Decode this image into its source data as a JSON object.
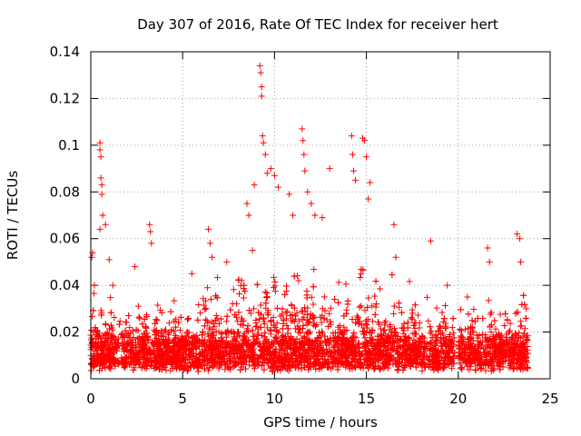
{
  "chart_data": {
    "type": "scatter",
    "title": "Day 307 of 2016, Rate Of TEC Index for receiver hert",
    "xlabel": "GPS time / hours",
    "ylabel": "ROTI / TECUs",
    "xlim": [
      0,
      25
    ],
    "ylim": [
      0,
      0.14
    ],
    "x_ticks": [
      {
        "value": 0,
        "label": "0"
      },
      {
        "value": 5,
        "label": "5"
      },
      {
        "value": 10,
        "label": "10"
      },
      {
        "value": 15,
        "label": "15"
      },
      {
        "value": 20,
        "label": "20"
      },
      {
        "value": 25,
        "label": "25"
      }
    ],
    "y_ticks": [
      {
        "value": 0,
        "label": "0"
      },
      {
        "value": 0.02,
        "label": "0.02"
      },
      {
        "value": 0.04,
        "label": "0.04"
      },
      {
        "value": 0.06,
        "label": "0.06"
      },
      {
        "value": 0.08,
        "label": "0.08"
      },
      {
        "value": 0.1,
        "label": "0.1"
      },
      {
        "value": 0.12,
        "label": "0.12"
      },
      {
        "value": 0.14,
        "label": "0.14"
      }
    ],
    "grid": true,
    "marker": "+",
    "marker_color": "#ff0000",
    "data_gap": [
      19.8,
      20.0
    ],
    "series": [
      {
        "name": "ROTI",
        "x": [
          0.0,
          0.05,
          0.1,
          0.2,
          0.5,
          0.5,
          0.55,
          0.55,
          0.6,
          0.6,
          0.65,
          0.5,
          0.8,
          1.0,
          1.2,
          2.4,
          3.2,
          3.25,
          3.3,
          5.5,
          6.4,
          6.5,
          6.6,
          7.4,
          8.5,
          8.6,
          8.8,
          8.9,
          9.2,
          9.25,
          9.3,
          9.3,
          9.35,
          9.4,
          9.5,
          9.6,
          9.8,
          10.0,
          10.2,
          10.8,
          11.0,
          11.5,
          11.55,
          11.6,
          11.65,
          11.8,
          12.0,
          12.2,
          12.6,
          13.0,
          14.2,
          14.25,
          14.3,
          14.4,
          14.8,
          14.9,
          15.0,
          15.1,
          15.2,
          16.5,
          16.6,
          18.5,
          19.4,
          20.5,
          21.6,
          21.7,
          23.2,
          23.35,
          23.4,
          23.7
        ],
        "y": [
          0.01,
          0.052,
          0.054,
          0.04,
          0.101,
          0.098,
          0.095,
          0.086,
          0.083,
          0.079,
          0.07,
          0.064,
          0.066,
          0.051,
          0.04,
          0.048,
          0.066,
          0.063,
          0.058,
          0.045,
          0.064,
          0.058,
          0.052,
          0.05,
          0.075,
          0.07,
          0.055,
          0.083,
          0.134,
          0.131,
          0.125,
          0.121,
          0.104,
          0.101,
          0.096,
          0.088,
          0.09,
          0.087,
          0.082,
          0.079,
          0.07,
          0.107,
          0.102,
          0.096,
          0.089,
          0.08,
          0.075,
          0.07,
          0.069,
          0.09,
          0.104,
          0.096,
          0.089,
          0.085,
          0.103,
          0.102,
          0.095,
          0.077,
          0.084,
          0.066,
          0.052,
          0.059,
          0.04,
          0.035,
          0.056,
          0.05,
          0.062,
          0.06,
          0.05,
          0.03
        ]
      }
    ]
  }
}
